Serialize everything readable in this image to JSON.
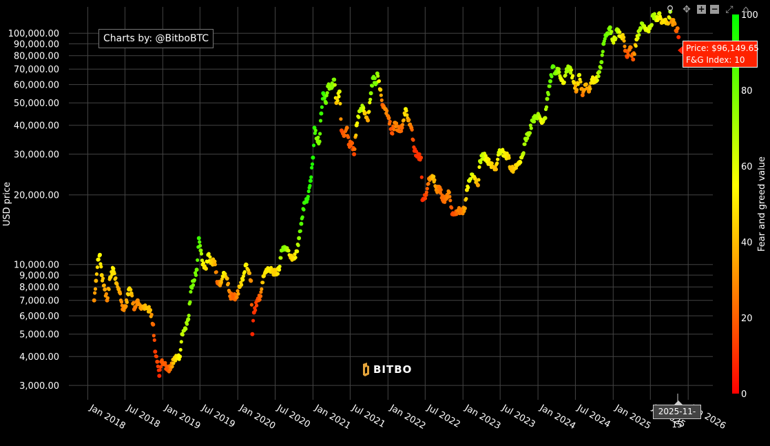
{
  "credit": "Charts by: @BitboBTC",
  "tooltip": {
    "price": "Price: $96,149.65",
    "fg": "F&G Index: 10",
    "color": "#ff2200"
  },
  "hover_date": "2025-11-15",
  "watermark": "BITBO",
  "modebar": [
    "zoom-icon",
    "pan-icon",
    "zoom-in-icon",
    "zoom-out-icon",
    "autoscale-icon",
    "reset-axes-icon"
  ],
  "chart_data": {
    "type": "scatter",
    "ylabel": "USD price",
    "yscale": "log",
    "ylim": [
      2600,
      130000
    ],
    "xlim": [
      "2017-10-01",
      "2026-05-01"
    ],
    "yticks": [
      3000,
      4000,
      5000,
      6000,
      7000,
      8000,
      9000,
      10000,
      20000,
      30000,
      40000,
      50000,
      60000,
      70000,
      80000,
      90000,
      100000
    ],
    "ytick_labels": [
      "3,000.00",
      "4,000.00",
      "5,000.00",
      "6,000.00",
      "7,000.00",
      "8,000.00",
      "9,000.00",
      "10,000.00",
      "20,000.00",
      "30,000.00",
      "40,000.00",
      "50,000.00",
      "60,000.00",
      "70,000.00",
      "80,000.00",
      "90,000.00",
      "100,000.00"
    ],
    "xticks": [
      "2018-01-01",
      "2018-07-01",
      "2019-01-01",
      "2019-07-01",
      "2020-01-01",
      "2020-07-01",
      "2021-01-01",
      "2021-07-01",
      "2022-01-01",
      "2022-07-01",
      "2023-01-01",
      "2023-07-01",
      "2024-01-01",
      "2024-07-01",
      "2025-01-01",
      "2025-07-01",
      "2026-01-01"
    ],
    "xtick_labels": [
      "Jan 2018",
      "Jul 2018",
      "Jan 2019",
      "Jul 2019",
      "Jan 2020",
      "Jul 2020",
      "Jan 2021",
      "Jul 2021",
      "Jan 2022",
      "Jul 2022",
      "Jan 2023",
      "Jul 2023",
      "Jan 2024",
      "Jul 2024",
      "Jan 2025",
      "Jul 2025",
      "Jan 2026"
    ],
    "colorbar": {
      "title": "Fear and greed value",
      "range": [
        0,
        100
      ],
      "ticks": [
        0,
        20,
        40,
        60,
        80,
        100
      ],
      "colors": [
        "#ff0000",
        "#ffa500",
        "#ffff00",
        "#00ff00"
      ]
    },
    "grid": true,
    "points": [
      [
        "2018-02-01",
        7000,
        30
      ],
      [
        "2018-02-10",
        8500,
        38
      ],
      [
        "2018-02-20",
        10500,
        52
      ],
      [
        "2018-03-01",
        11000,
        55
      ],
      [
        "2018-03-10",
        9000,
        45
      ],
      [
        "2018-03-25",
        7800,
        35
      ],
      [
        "2018-04-05",
        7000,
        28
      ],
      [
        "2018-04-20",
        8800,
        45
      ],
      [
        "2018-05-05",
        9600,
        52
      ],
      [
        "2018-05-20",
        8300,
        40
      ],
      [
        "2018-06-05",
        7600,
        35
      ],
      [
        "2018-06-20",
        6400,
        28
      ],
      [
        "2018-07-05",
        6600,
        32
      ],
      [
        "2018-07-20",
        7800,
        50
      ],
      [
        "2018-08-01",
        7500,
        42
      ],
      [
        "2018-08-15",
        6400,
        25
      ],
      [
        "2018-09-01",
        7000,
        30
      ],
      [
        "2018-09-15",
        6500,
        32
      ],
      [
        "2018-10-01",
        6600,
        38
      ],
      [
        "2018-10-20",
        6450,
        42
      ],
      [
        "2018-11-01",
        6350,
        40
      ],
      [
        "2018-11-15",
        5500,
        22
      ],
      [
        "2018-11-25",
        4200,
        12
      ],
      [
        "2018-12-05",
        3800,
        15
      ],
      [
        "2018-12-15",
        3300,
        8
      ],
      [
        "2018-12-25",
        3800,
        18
      ],
      [
        "2019-01-10",
        3700,
        20
      ],
      [
        "2019-01-25",
        3500,
        18
      ],
      [
        "2019-02-10",
        3600,
        28
      ],
      [
        "2019-02-25",
        3900,
        45
      ],
      [
        "2019-03-10",
        3950,
        50
      ],
      [
        "2019-03-25",
        4000,
        55
      ],
      [
        "2019-04-05",
        5000,
        65
      ],
      [
        "2019-04-20",
        5300,
        68
      ],
      [
        "2019-05-05",
        5800,
        72
      ],
      [
        "2019-05-20",
        8000,
        80
      ],
      [
        "2019-06-01",
        8500,
        78
      ],
      [
        "2019-06-15",
        9500,
        80
      ],
      [
        "2019-06-26",
        13000,
        90
      ],
      [
        "2019-07-05",
        11500,
        75
      ],
      [
        "2019-07-15",
        10000,
        55
      ],
      [
        "2019-07-30",
        9600,
        48
      ],
      [
        "2019-08-10",
        11000,
        60
      ],
      [
        "2019-08-25",
        10200,
        45
      ],
      [
        "2019-09-10",
        10300,
        40
      ],
      [
        "2019-09-25",
        8300,
        20
      ],
      [
        "2019-10-10",
        8300,
        35
      ],
      [
        "2019-10-25",
        9200,
        55
      ],
      [
        "2019-11-10",
        8700,
        40
      ],
      [
        "2019-11-25",
        7300,
        25
      ],
      [
        "2019-12-10",
        7300,
        20
      ],
      [
        "2019-12-25",
        7200,
        25
      ],
      [
        "2020-01-10",
        8000,
        42
      ],
      [
        "2020-01-25",
        8600,
        50
      ],
      [
        "2020-02-10",
        10000,
        55
      ],
      [
        "2020-02-25",
        9200,
        42
      ],
      [
        "2020-03-05",
        8500,
        30
      ],
      [
        "2020-03-12",
        5000,
        8
      ],
      [
        "2020-03-20",
        6200,
        10
      ],
      [
        "2020-04-05",
        7000,
        15
      ],
      [
        "2020-04-20",
        7300,
        22
      ],
      [
        "2020-05-05",
        8900,
        48
      ],
      [
        "2020-05-20",
        9500,
        50
      ],
      [
        "2020-06-05",
        9600,
        52
      ],
      [
        "2020-06-20",
        9300,
        45
      ],
      [
        "2020-07-05",
        9200,
        44
      ],
      [
        "2020-07-20",
        9500,
        52
      ],
      [
        "2020-08-01",
        11500,
        75
      ],
      [
        "2020-08-15",
        11900,
        78
      ],
      [
        "2020-09-01",
        11500,
        68
      ],
      [
        "2020-09-15",
        10700,
        45
      ],
      [
        "2020-10-01",
        10600,
        48
      ],
      [
        "2020-10-15",
        11400,
        58
      ],
      [
        "2020-10-25",
        13000,
        75
      ],
      [
        "2020-11-05",
        15000,
        85
      ],
      [
        "2020-11-20",
        18500,
        90
      ],
      [
        "2020-12-05",
        19200,
        92
      ],
      [
        "2020-12-20",
        23000,
        94
      ],
      [
        "2021-01-01",
        29000,
        95
      ],
      [
        "2021-01-08",
        39000,
        93
      ],
      [
        "2021-01-20",
        35000,
        75
      ],
      [
        "2021-02-01",
        34000,
        78
      ],
      [
        "2021-02-10",
        45000,
        90
      ],
      [
        "2021-02-20",
        55000,
        92
      ],
      [
        "2021-03-05",
        50000,
        80
      ],
      [
        "2021-03-15",
        59000,
        75
      ],
      [
        "2021-04-01",
        58000,
        75
      ],
      [
        "2021-04-14",
        63000,
        78
      ],
      [
        "2021-04-25",
        50000,
        40
      ],
      [
        "2021-05-10",
        56000,
        60
      ],
      [
        "2021-05-20",
        38000,
        15
      ],
      [
        "2021-06-01",
        36000,
        20
      ],
      [
        "2021-06-15",
        39000,
        25
      ],
      [
        "2021-06-25",
        33000,
        18
      ],
      [
        "2021-07-10",
        33500,
        20
      ],
      [
        "2021-07-20",
        30000,
        15
      ],
      [
        "2021-08-01",
        40000,
        52
      ],
      [
        "2021-08-15",
        46000,
        65
      ],
      [
        "2021-09-01",
        48000,
        70
      ],
      [
        "2021-09-10",
        45000,
        45
      ],
      [
        "2021-09-25",
        42000,
        35
      ],
      [
        "2021-10-10",
        55000,
        75
      ],
      [
        "2021-10-20",
        64000,
        80
      ],
      [
        "2021-11-05",
        61000,
        78
      ],
      [
        "2021-11-10",
        67000,
        75
      ],
      [
        "2021-11-25",
        57000,
        45
      ],
      [
        "2021-12-05",
        49000,
        20
      ],
      [
        "2021-12-20",
        47000,
        30
      ],
      [
        "2022-01-05",
        43000,
        25
      ],
      [
        "2022-01-20",
        37000,
        15
      ],
      [
        "2022-02-05",
        41000,
        30
      ],
      [
        "2022-02-20",
        38000,
        25
      ],
      [
        "2022-03-10",
        39000,
        22
      ],
      [
        "2022-03-28",
        47000,
        55
      ],
      [
        "2022-04-10",
        42000,
        35
      ],
      [
        "2022-04-25",
        39000,
        25
      ],
      [
        "2022-05-10",
        31000,
        10
      ],
      [
        "2022-05-25",
        29500,
        10
      ],
      [
        "2022-06-10",
        29000,
        12
      ],
      [
        "2022-06-18",
        19000,
        8
      ],
      [
        "2022-07-05",
        20000,
        15
      ],
      [
        "2022-07-20",
        23500,
        28
      ],
      [
        "2022-08-10",
        24000,
        42
      ],
      [
        "2022-08-25",
        21000,
        30
      ],
      [
        "2022-09-10",
        21500,
        25
      ],
      [
        "2022-09-25",
        19000,
        22
      ],
      [
        "2022-10-10",
        19200,
        25
      ],
      [
        "2022-10-25",
        20500,
        30
      ],
      [
        "2022-11-10",
        16500,
        15
      ],
      [
        "2022-11-25",
        16500,
        18
      ],
      [
        "2022-12-10",
        17200,
        28
      ],
      [
        "2022-12-25",
        16800,
        25
      ],
      [
        "2023-01-10",
        17500,
        35
      ],
      [
        "2023-01-20",
        21000,
        50
      ],
      [
        "2023-02-01",
        23000,
        60
      ],
      [
        "2023-02-15",
        24500,
        62
      ],
      [
        "2023-03-01",
        23500,
        48
      ],
      [
        "2023-03-15",
        22000,
        35
      ],
      [
        "2023-03-25",
        28000,
        65
      ],
      [
        "2023-04-10",
        30000,
        65
      ],
      [
        "2023-04-25",
        28500,
        55
      ],
      [
        "2023-05-10",
        27500,
        50
      ],
      [
        "2023-05-25",
        26500,
        45
      ],
      [
        "2023-06-10",
        25800,
        40
      ],
      [
        "2023-06-25",
        30500,
        62
      ],
      [
        "2023-07-10",
        30800,
        58
      ],
      [
        "2023-07-25",
        29500,
        52
      ],
      [
        "2023-08-10",
        29500,
        48
      ],
      [
        "2023-08-20",
        26000,
        40
      ],
      [
        "2023-09-05",
        25800,
        42
      ],
      [
        "2023-09-20",
        27000,
        48
      ],
      [
        "2023-10-05",
        27800,
        52
      ],
      [
        "2023-10-20",
        30000,
        65
      ],
      [
        "2023-11-01",
        35000,
        72
      ],
      [
        "2023-11-20",
        37000,
        70
      ],
      [
        "2023-12-05",
        42000,
        75
      ],
      [
        "2023-12-20",
        43000,
        72
      ],
      [
        "2024-01-05",
        44000,
        70
      ],
      [
        "2024-01-20",
        41000,
        55
      ],
      [
        "2024-02-05",
        43000,
        65
      ],
      [
        "2024-02-15",
        52000,
        75
      ],
      [
        "2024-03-01",
        62000,
        82
      ],
      [
        "2024-03-14",
        72000,
        85
      ],
      [
        "2024-03-25",
        67000,
        78
      ],
      [
        "2024-04-10",
        70000,
        72
      ],
      [
        "2024-04-20",
        64000,
        60
      ],
      [
        "2024-05-05",
        61000,
        55
      ],
      [
        "2024-05-20",
        70000,
        72
      ],
      [
        "2024-06-05",
        71000,
        70
      ],
      [
        "2024-06-25",
        61000,
        48
      ],
      [
        "2024-07-05",
        56000,
        30
      ],
      [
        "2024-07-20",
        66000,
        60
      ],
      [
        "2024-08-05",
        54000,
        25
      ],
      [
        "2024-08-20",
        60000,
        40
      ],
      [
        "2024-09-05",
        56000,
        32
      ],
      [
        "2024-09-20",
        63000,
        52
      ],
      [
        "2024-10-10",
        62000,
        50
      ],
      [
        "2024-10-25",
        68000,
        72
      ],
      [
        "2024-11-05",
        75000,
        78
      ],
      [
        "2024-11-15",
        90000,
        80
      ],
      [
        "2024-11-25",
        98000,
        82
      ],
      [
        "2024-12-05",
        100000,
        80
      ],
      [
        "2024-12-17",
        106000,
        78
      ],
      [
        "2024-12-30",
        93000,
        62
      ],
      [
        "2025-01-10",
        94000,
        60
      ],
      [
        "2025-01-20",
        104000,
        72
      ],
      [
        "2025-02-05",
        97000,
        55
      ],
      [
        "2025-02-20",
        96000,
        45
      ],
      [
        "2025-03-01",
        84000,
        22
      ],
      [
        "2025-03-10",
        79000,
        15
      ],
      [
        "2025-03-25",
        87000,
        30
      ],
      [
        "2025-04-08",
        77000,
        18
      ],
      [
        "2025-04-25",
        94000,
        55
      ],
      [
        "2025-05-10",
        103000,
        70
      ],
      [
        "2025-05-22",
        110000,
        72
      ],
      [
        "2025-06-05",
        105000,
        62
      ],
      [
        "2025-06-20",
        103000,
        58
      ],
      [
        "2025-07-05",
        108000,
        65
      ],
      [
        "2025-07-14",
        120000,
        70
      ],
      [
        "2025-07-25",
        117000,
        68
      ],
      [
        "2025-08-05",
        114000,
        55
      ],
      [
        "2025-08-14",
        122000,
        62
      ],
      [
        "2025-08-25",
        111000,
        45
      ],
      [
        "2025-09-10",
        113000,
        50
      ],
      [
        "2025-09-25",
        110000,
        42
      ],
      [
        "2025-10-06",
        124000,
        70
      ],
      [
        "2025-10-11",
        112000,
        30
      ],
      [
        "2025-10-25",
        111000,
        35
      ],
      [
        "2025-11-05",
        102000,
        20
      ],
      [
        "2025-11-10",
        105000,
        25
      ],
      [
        "2025-11-15",
        96149.65,
        10
      ]
    ]
  }
}
